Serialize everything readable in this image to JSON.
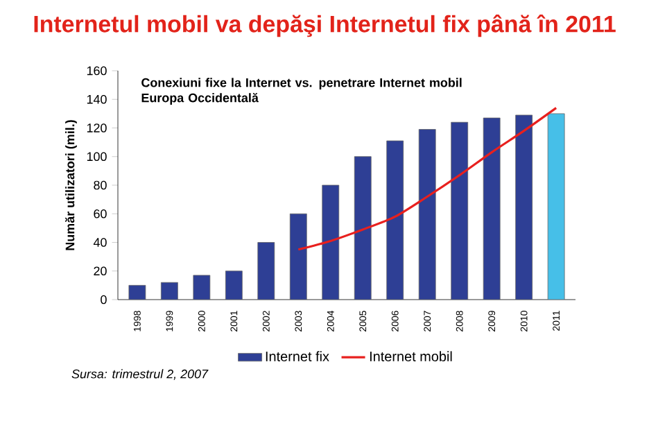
{
  "chart_data": {
    "type": "bar",
    "title": "Internetul mobil va depăşi Internetul fix până în 2011",
    "subtitle": "Conexiuni fixe la Internet vs. penetrare Internet mobil Europa Occidentală",
    "ylabel": "Număr utilizatori (mil.)",
    "categories": [
      "1998",
      "1999",
      "2000",
      "2001",
      "2002",
      "2003",
      "2004",
      "2005",
      "2006",
      "2007",
      "2008",
      "2009",
      "2010",
      "2011"
    ],
    "series": [
      {
        "name": "Internet fix",
        "color": "#2e3f95",
        "colors": [
          "#2e3f95",
          "#2e3f95",
          "#2e3f95",
          "#2e3f95",
          "#2e3f95",
          "#2e3f95",
          "#2e3f95",
          "#2e3f95",
          "#2e3f95",
          "#2e3f95",
          "#2e3f95",
          "#2e3f95",
          "#2e3f95",
          "#46bfe8"
        ],
        "values": [
          10,
          12,
          17,
          20,
          40,
          60,
          80,
          100,
          111,
          119,
          124,
          127,
          129,
          130
        ]
      },
      {
        "name": "Internet mobil",
        "type": "line",
        "color": "#e8201e",
        "values": [
          null,
          null,
          null,
          null,
          null,
          35,
          41,
          49,
          58,
          72,
          87,
          103,
          118,
          134
        ]
      }
    ],
    "ylim": [
      0,
      160
    ],
    "yticks": [
      0,
      20,
      40,
      60,
      80,
      100,
      120,
      140,
      160
    ],
    "legend": "bottom",
    "annotations": [
      "Sursa: trimestrul 2, 2007"
    ]
  }
}
